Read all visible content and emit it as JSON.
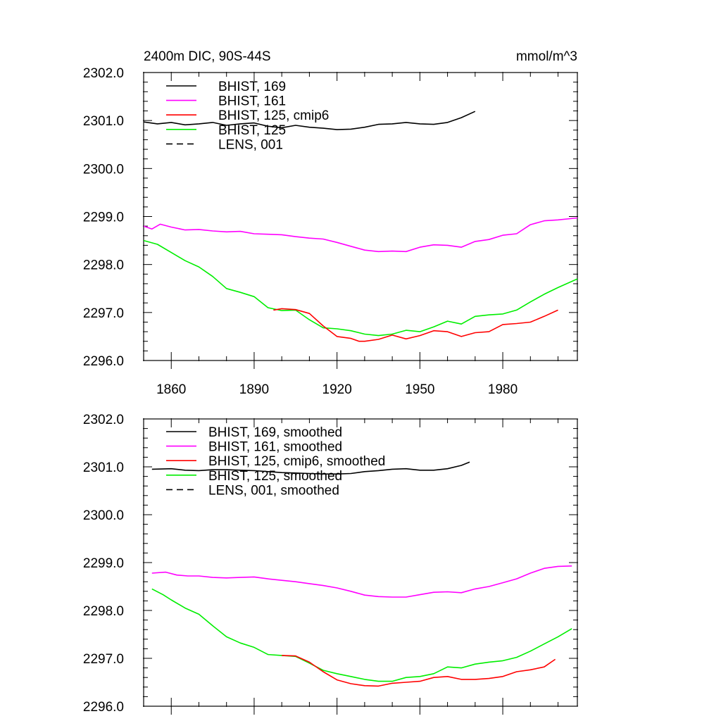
{
  "figure": {
    "title": "2400m DIC, 90S-44S",
    "units": "mmol/m^3"
  },
  "colors": {
    "black": "#000000",
    "magenta": "#ff00ff",
    "red": "#ff0000",
    "green": "#00ee00"
  },
  "chart_data": [
    {
      "type": "line",
      "title": "2400m DIC, 90S-44S",
      "unit_label": "mmol/m^3",
      "xlim": [
        1850,
        2007
      ],
      "ylim": [
        2296.0,
        2302.0
      ],
      "x_ticks": [
        1860,
        1890,
        1920,
        1950,
        1980
      ],
      "x_tick_labels": [
        "1860",
        "1890",
        "1920",
        "1950",
        "1980"
      ],
      "y_ticks": [
        2296.0,
        2297.0,
        2298.0,
        2299.0,
        2300.0,
        2301.0,
        2302.0
      ],
      "y_tick_labels": [
        "2296.0",
        "2297.0",
        "2298.0",
        "2299.0",
        "2300.0",
        "2301.0",
        "2302.0"
      ],
      "legend_position": "top-left",
      "legend": [
        {
          "label": "BHIST, 169",
          "color": "#000000",
          "dash": "solid"
        },
        {
          "label": "BHIST, 161",
          "color": "#ff00ff",
          "dash": "solid"
        },
        {
          "label": "BHIST, 125, cmip6",
          "color": "#ff0000",
          "dash": "solid"
        },
        {
          "label": "BHIST, 125",
          "color": "#00ee00",
          "dash": "solid"
        },
        {
          "label": "LENS, 001",
          "color": "#000000",
          "dash": "dashed"
        }
      ],
      "series": [
        {
          "name": "BHIST, 169",
          "color": "#000000",
          "x": [
            1850,
            1855,
            1860,
            1865,
            1870,
            1875,
            1880,
            1885,
            1890,
            1895,
            1900,
            1905,
            1910,
            1915,
            1920,
            1925,
            1930,
            1935,
            1940,
            1945,
            1950,
            1955,
            1960,
            1965,
            1970
          ],
          "y": [
            2300.97,
            2300.93,
            2300.96,
            2300.91,
            2300.93,
            2300.96,
            2300.9,
            2300.93,
            2300.95,
            2300.88,
            2300.85,
            2300.9,
            2300.86,
            2300.84,
            2300.81,
            2300.82,
            2300.86,
            2300.92,
            2300.93,
            2300.96,
            2300.93,
            2300.92,
            2300.96,
            2301.06,
            2301.19
          ]
        },
        {
          "name": "BHIST, 161",
          "color": "#ff00ff",
          "x": [
            1850,
            1853,
            1856,
            1860,
            1865,
            1870,
            1875,
            1880,
            1885,
            1890,
            1895,
            1900,
            1905,
            1910,
            1915,
            1920,
            1925,
            1930,
            1935,
            1940,
            1945,
            1950,
            1955,
            1960,
            1965,
            1970,
            1975,
            1980,
            1985,
            1990,
            1995,
            2000,
            2007
          ],
          "y": [
            2298.8,
            2298.74,
            2298.84,
            2298.78,
            2298.72,
            2298.73,
            2298.7,
            2298.68,
            2298.69,
            2298.64,
            2298.63,
            2298.62,
            2298.58,
            2298.55,
            2298.53,
            2298.46,
            2298.38,
            2298.3,
            2298.27,
            2298.28,
            2298.27,
            2298.36,
            2298.41,
            2298.4,
            2298.36,
            2298.48,
            2298.52,
            2298.61,
            2298.64,
            2298.83,
            2298.91,
            2298.93,
            2298.97
          ]
        },
        {
          "name": "BHIST, 125, cmip6",
          "color": "#ff0000",
          "x": [
            1897,
            1900,
            1905,
            1910,
            1915,
            1920,
            1925,
            1928,
            1930,
            1935,
            1940,
            1945,
            1950,
            1955,
            1960,
            1965,
            1970,
            1975,
            1980,
            1985,
            1990,
            1995,
            2000
          ],
          "y": [
            2297.05,
            2297.08,
            2297.06,
            2296.98,
            2296.72,
            2296.5,
            2296.46,
            2296.4,
            2296.4,
            2296.44,
            2296.53,
            2296.45,
            2296.52,
            2296.62,
            2296.6,
            2296.5,
            2296.58,
            2296.6,
            2296.75,
            2296.77,
            2296.8,
            2296.92,
            2297.05
          ]
        },
        {
          "name": "BHIST, 125",
          "color": "#00ee00",
          "x": [
            1850,
            1855,
            1860,
            1865,
            1870,
            1875,
            1880,
            1885,
            1890,
            1895,
            1900,
            1905,
            1910,
            1915,
            1920,
            1925,
            1930,
            1935,
            1940,
            1945,
            1950,
            1955,
            1960,
            1965,
            1970,
            1975,
            1980,
            1985,
            1990,
            1995,
            2000,
            2007
          ],
          "y": [
            2298.5,
            2298.42,
            2298.25,
            2298.08,
            2297.95,
            2297.75,
            2297.5,
            2297.42,
            2297.33,
            2297.1,
            2297.04,
            2297.05,
            2296.85,
            2296.68,
            2296.66,
            2296.62,
            2296.55,
            2296.52,
            2296.55,
            2296.63,
            2296.6,
            2296.7,
            2296.82,
            2296.76,
            2296.92,
            2296.95,
            2296.97,
            2297.05,
            2297.22,
            2297.38,
            2297.52,
            2297.7
          ]
        }
      ]
    },
    {
      "type": "line",
      "xlim": [
        1850,
        2007
      ],
      "ylim": [
        2296.0,
        2302.0
      ],
      "x_ticks": [
        1860,
        1890,
        1920,
        1950,
        1980
      ],
      "y_ticks": [
        2296.0,
        2297.0,
        2298.0,
        2299.0,
        2300.0,
        2301.0,
        2302.0
      ],
      "y_tick_labels": [
        "2296.0",
        "2297.0",
        "2298.0",
        "2299.0",
        "2300.0",
        "2301.0",
        "2302.0"
      ],
      "legend_position": "top-left",
      "legend": [
        {
          "label": "BHIST, 169, smoothed",
          "color": "#000000",
          "dash": "solid"
        },
        {
          "label": "BHIST, 161, smoothed",
          "color": "#ff00ff",
          "dash": "solid"
        },
        {
          "label": "BHIST, 125, cmip6, smoothed",
          "color": "#ff0000",
          "dash": "solid"
        },
        {
          "label": "BHIST, 125, smoothed",
          "color": "#00ee00",
          "dash": "solid"
        },
        {
          "label": "LENS, 001, smoothed",
          "color": "#000000",
          "dash": "dashed"
        }
      ],
      "series": [
        {
          "name": "BHIST, 169, smoothed",
          "color": "#000000",
          "x": [
            1853,
            1860,
            1865,
            1870,
            1875,
            1880,
            1885,
            1890,
            1895,
            1900,
            1905,
            1910,
            1915,
            1920,
            1925,
            1930,
            1935,
            1940,
            1945,
            1950,
            1955,
            1960,
            1965,
            1968
          ],
          "y": [
            2300.95,
            2300.96,
            2300.93,
            2300.92,
            2300.94,
            2300.94,
            2300.93,
            2300.92,
            2300.9,
            2300.88,
            2300.87,
            2300.86,
            2300.85,
            2300.85,
            2300.86,
            2300.9,
            2300.92,
            2300.95,
            2300.96,
            2300.93,
            2300.93,
            2300.96,
            2301.03,
            2301.1
          ]
        },
        {
          "name": "BHIST, 161, smoothed",
          "color": "#ff00ff",
          "x": [
            1853,
            1858,
            1862,
            1866,
            1870,
            1875,
            1880,
            1885,
            1890,
            1895,
            1900,
            1905,
            1910,
            1915,
            1920,
            1925,
            1930,
            1935,
            1940,
            1945,
            1950,
            1955,
            1960,
            1965,
            1970,
            1975,
            1980,
            1985,
            1990,
            1995,
            2000,
            2005
          ],
          "y": [
            2298.78,
            2298.8,
            2298.74,
            2298.72,
            2298.72,
            2298.69,
            2298.68,
            2298.69,
            2298.7,
            2298.66,
            2298.63,
            2298.6,
            2298.56,
            2298.52,
            2298.47,
            2298.4,
            2298.32,
            2298.29,
            2298.28,
            2298.28,
            2298.33,
            2298.38,
            2298.39,
            2298.37,
            2298.45,
            2298.5,
            2298.58,
            2298.66,
            2298.78,
            2298.88,
            2298.92,
            2298.93
          ]
        },
        {
          "name": "BHIST, 125, cmip6, smoothed",
          "color": "#ff0000",
          "x": [
            1900,
            1905,
            1910,
            1915,
            1920,
            1925,
            1930,
            1935,
            1940,
            1945,
            1950,
            1955,
            1960,
            1965,
            1970,
            1975,
            1980,
            1985,
            1990,
            1995,
            1999
          ],
          "y": [
            2297.06,
            2297.05,
            2296.92,
            2296.72,
            2296.55,
            2296.47,
            2296.43,
            2296.42,
            2296.48,
            2296.5,
            2296.52,
            2296.6,
            2296.62,
            2296.56,
            2296.56,
            2296.58,
            2296.62,
            2296.72,
            2296.76,
            2296.82,
            2296.98
          ]
        },
        {
          "name": "BHIST, 125, smoothed",
          "color": "#00ee00",
          "x": [
            1853,
            1857,
            1860,
            1865,
            1870,
            1875,
            1880,
            1885,
            1890,
            1895,
            1900,
            1905,
            1910,
            1915,
            1920,
            1925,
            1930,
            1935,
            1940,
            1945,
            1950,
            1955,
            1960,
            1965,
            1970,
            1975,
            1980,
            1985,
            1990,
            1995,
            2000,
            2005
          ],
          "y": [
            2298.45,
            2298.33,
            2298.22,
            2298.05,
            2297.92,
            2297.68,
            2297.45,
            2297.32,
            2297.23,
            2297.08,
            2297.06,
            2297.04,
            2296.9,
            2296.75,
            2296.68,
            2296.62,
            2296.56,
            2296.52,
            2296.52,
            2296.6,
            2296.62,
            2296.68,
            2296.82,
            2296.8,
            2296.88,
            2296.92,
            2296.95,
            2297.02,
            2297.15,
            2297.3,
            2297.45,
            2297.62
          ]
        }
      ]
    }
  ]
}
